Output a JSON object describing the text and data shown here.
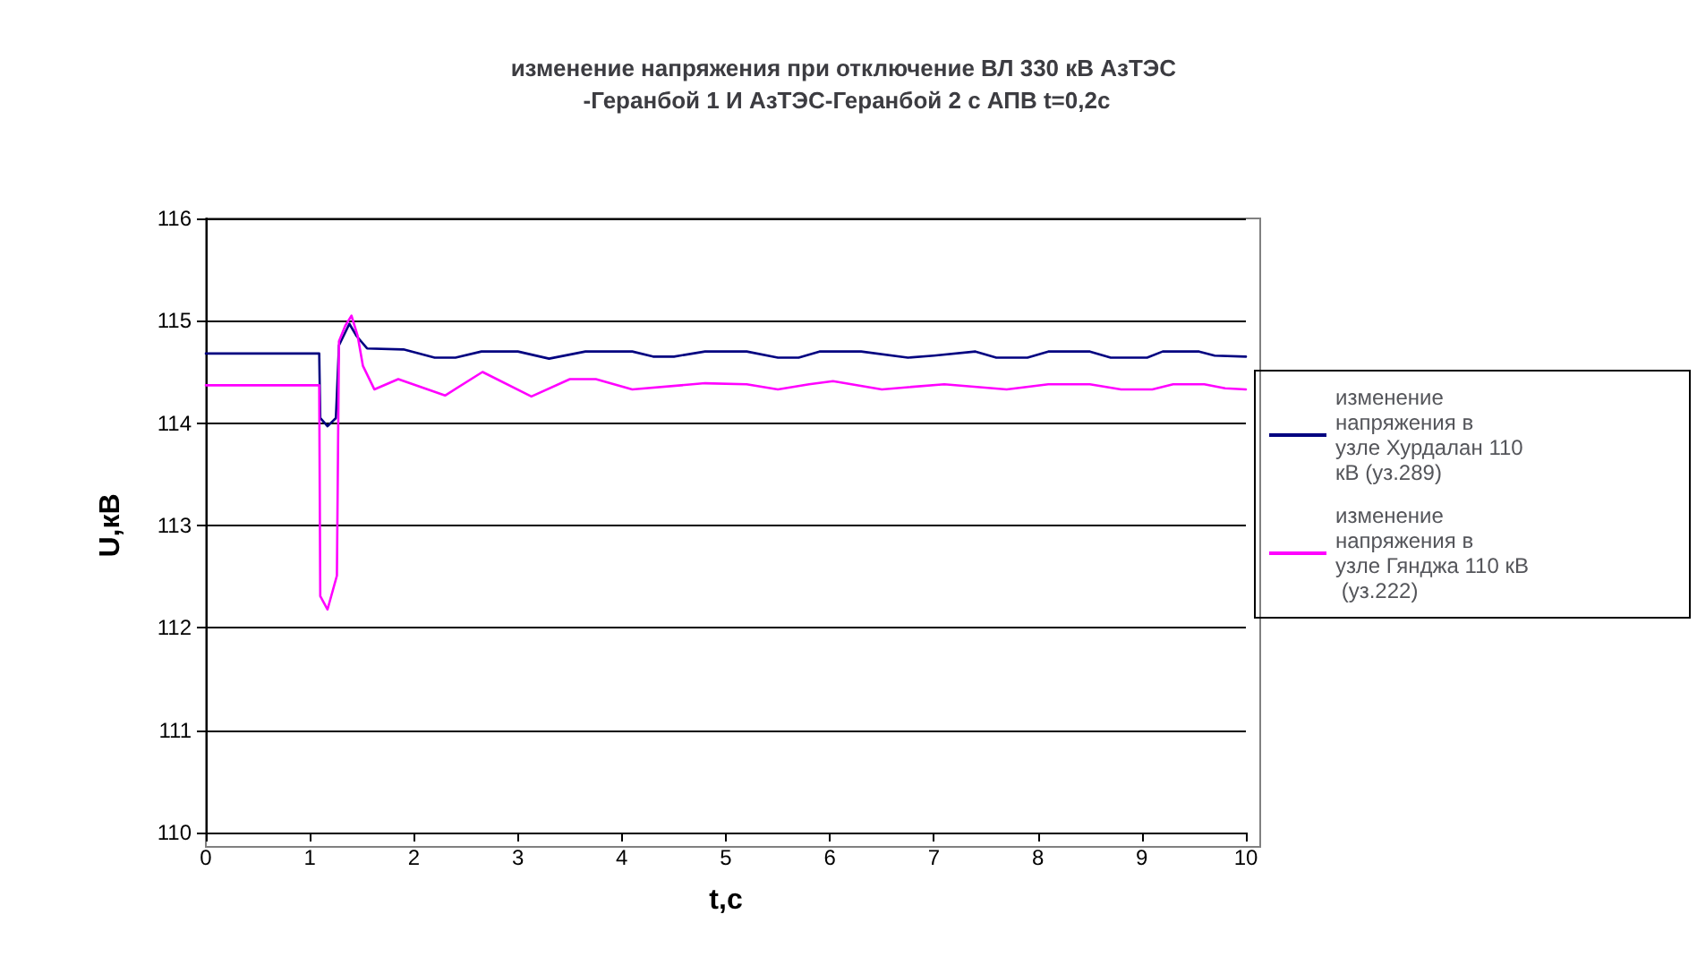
{
  "chart_data": {
    "type": "line",
    "title": "изменение напряжения при отключение ВЛ 330 кВ АзТЭС -Геранбой 1 И АзТЭС-Геранбой 2 с АПВ t=0,2с",
    "xlabel": "t,c",
    "ylabel": "U,кВ",
    "xlim": [
      0,
      10
    ],
    "xticks": [
      0,
      1,
      2,
      3,
      4,
      5,
      6,
      7,
      8,
      9,
      10
    ],
    "ylim": [
      110,
      116
    ],
    "yticks": [
      110,
      111,
      112,
      113,
      114,
      115,
      116
    ],
    "grid": "y",
    "legend": "right",
    "marker": "none",
    "line_style": "solid",
    "series": [
      {
        "name": "изменение напряжения в узле Хурдалан 110 кВ (уз.289)",
        "color": "#000080",
        "x": [
          0,
          1.09,
          1.1,
          1.17,
          1.25,
          1.28,
          1.38,
          1.45,
          1.55,
          1.9,
          2.2,
          2.4,
          2.65,
          3.0,
          3.3,
          3.65,
          4.1,
          4.3,
          4.5,
          4.8,
          5.2,
          5.5,
          5.7,
          5.9,
          6.3,
          6.75,
          7.0,
          7.4,
          7.6,
          7.9,
          8.1,
          8.5,
          8.7,
          9.05,
          9.2,
          9.55,
          9.7,
          10
        ],
        "values": [
          114.68,
          114.68,
          114.05,
          113.97,
          114.05,
          114.76,
          114.97,
          114.85,
          114.73,
          114.72,
          114.64,
          114.64,
          114.7,
          114.7,
          114.63,
          114.7,
          114.7,
          114.65,
          114.65,
          114.7,
          114.7,
          114.64,
          114.64,
          114.7,
          114.7,
          114.64,
          114.66,
          114.7,
          114.64,
          114.64,
          114.7,
          114.7,
          114.64,
          114.64,
          114.7,
          114.7,
          114.66,
          114.65
        ]
      },
      {
        "name": "изменение напряжения в узле Гянджа 110 кВ (уз.222)",
        "color": "#ff00ff",
        "x": [
          0,
          1.09,
          1.1,
          1.17,
          1.26,
          1.28,
          1.34,
          1.4,
          1.46,
          1.51,
          1.62,
          1.85,
          2.3,
          2.66,
          3.13,
          3.5,
          3.75,
          4.1,
          4.8,
          5.2,
          5.5,
          5.8,
          6.03,
          6.5,
          7.1,
          7.7,
          8.1,
          8.5,
          8.8,
          9.1,
          9.3,
          9.6,
          9.8,
          10
        ],
        "values": [
          114.37,
          114.37,
          112.31,
          112.18,
          112.51,
          114.8,
          114.95,
          115.05,
          114.85,
          114.56,
          114.33,
          114.43,
          114.27,
          114.5,
          114.26,
          114.43,
          114.43,
          114.33,
          114.39,
          114.38,
          114.33,
          114.38,
          114.41,
          114.33,
          114.38,
          114.33,
          114.38,
          114.38,
          114.33,
          114.33,
          114.38,
          114.38,
          114.34,
          114.33
        ]
      }
    ]
  }
}
